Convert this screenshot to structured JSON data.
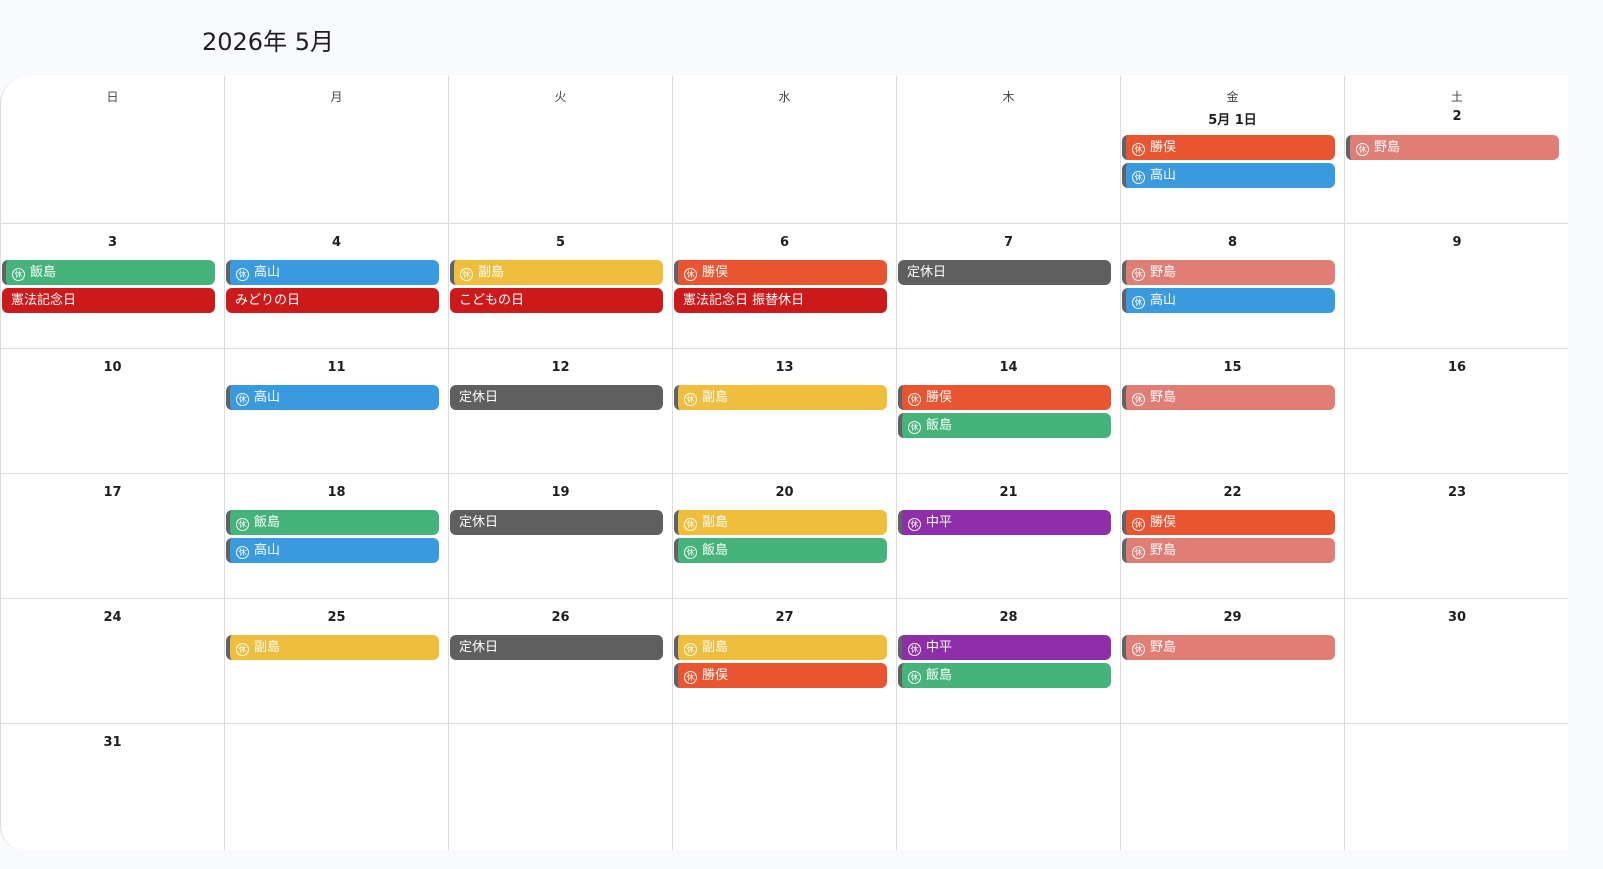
{
  "title": "2026年 5月",
  "weekdays": [
    "日",
    "月",
    "火",
    "水",
    "木",
    "金",
    "土"
  ],
  "icon": "holiday-circled-kyu-icon",
  "icon_glyph": "休",
  "colors": {
    "勝俣": "#E95530",
    "高山": "#3A9AE0",
    "野島": "#E07D75",
    "飯島": "#45B37A",
    "副島": "#EEBE3C",
    "中平": "#8E2EA8",
    "holiday": "#CC1A1A",
    "closed": "#5F5F5F"
  },
  "weeks": [
    [
      {
        "date": ""
      },
      {
        "date": ""
      },
      {
        "date": ""
      },
      {
        "date": ""
      },
      {
        "date": ""
      },
      {
        "date": "5月 1日",
        "events": [
          {
            "label": "勝俣",
            "type": "staff"
          },
          {
            "label": "高山",
            "type": "staff"
          }
        ]
      },
      {
        "date": "2",
        "events": [
          {
            "label": "野島",
            "type": "staff"
          }
        ]
      }
    ],
    [
      {
        "date": "3",
        "events": [
          {
            "label": "飯島",
            "type": "staff"
          },
          {
            "label": "憲法記念日",
            "type": "holiday"
          }
        ]
      },
      {
        "date": "4",
        "events": [
          {
            "label": "高山",
            "type": "staff"
          },
          {
            "label": "みどりの日",
            "type": "holiday"
          }
        ]
      },
      {
        "date": "5",
        "events": [
          {
            "label": "副島",
            "type": "staff"
          },
          {
            "label": "こどもの日",
            "type": "holiday"
          }
        ]
      },
      {
        "date": "6",
        "events": [
          {
            "label": "勝俣",
            "type": "staff"
          },
          {
            "label": "憲法記念日 振替休日",
            "type": "holiday"
          }
        ]
      },
      {
        "date": "7",
        "events": [
          {
            "label": "定休日",
            "type": "closed"
          }
        ]
      },
      {
        "date": "8",
        "events": [
          {
            "label": "野島",
            "type": "staff"
          },
          {
            "label": "高山",
            "type": "staff"
          }
        ]
      },
      {
        "date": "9"
      }
    ],
    [
      {
        "date": "10"
      },
      {
        "date": "11",
        "events": [
          {
            "label": "高山",
            "type": "staff"
          }
        ]
      },
      {
        "date": "12",
        "events": [
          {
            "label": "定休日",
            "type": "closed"
          }
        ]
      },
      {
        "date": "13",
        "events": [
          {
            "label": "副島",
            "type": "staff"
          }
        ]
      },
      {
        "date": "14",
        "events": [
          {
            "label": "勝俣",
            "type": "staff"
          },
          {
            "label": "飯島",
            "type": "staff"
          }
        ]
      },
      {
        "date": "15",
        "events": [
          {
            "label": "野島",
            "type": "staff"
          }
        ]
      },
      {
        "date": "16"
      }
    ],
    [
      {
        "date": "17"
      },
      {
        "date": "18",
        "events": [
          {
            "label": "飯島",
            "type": "staff"
          },
          {
            "label": "高山",
            "type": "staff"
          }
        ]
      },
      {
        "date": "19",
        "events": [
          {
            "label": "定休日",
            "type": "closed"
          }
        ]
      },
      {
        "date": "20",
        "events": [
          {
            "label": "副島",
            "type": "staff"
          },
          {
            "label": "飯島",
            "type": "staff"
          }
        ]
      },
      {
        "date": "21",
        "events": [
          {
            "label": "中平",
            "type": "staff"
          }
        ]
      },
      {
        "date": "22",
        "events": [
          {
            "label": "勝俣",
            "type": "staff"
          },
          {
            "label": "野島",
            "type": "staff"
          }
        ]
      },
      {
        "date": "23"
      }
    ],
    [
      {
        "date": "24"
      },
      {
        "date": "25",
        "events": [
          {
            "label": "副島",
            "type": "staff"
          }
        ]
      },
      {
        "date": "26",
        "events": [
          {
            "label": "定休日",
            "type": "closed"
          }
        ]
      },
      {
        "date": "27",
        "events": [
          {
            "label": "副島",
            "type": "staff"
          },
          {
            "label": "勝俣",
            "type": "staff"
          }
        ]
      },
      {
        "date": "28",
        "events": [
          {
            "label": "中平",
            "type": "staff"
          },
          {
            "label": "飯島",
            "type": "staff"
          }
        ]
      },
      {
        "date": "29",
        "events": [
          {
            "label": "野島",
            "type": "staff"
          }
        ]
      },
      {
        "date": "30"
      }
    ],
    [
      {
        "date": "31"
      },
      {
        "date": ""
      },
      {
        "date": ""
      },
      {
        "date": ""
      },
      {
        "date": ""
      },
      {
        "date": ""
      },
      {
        "date": ""
      }
    ]
  ]
}
